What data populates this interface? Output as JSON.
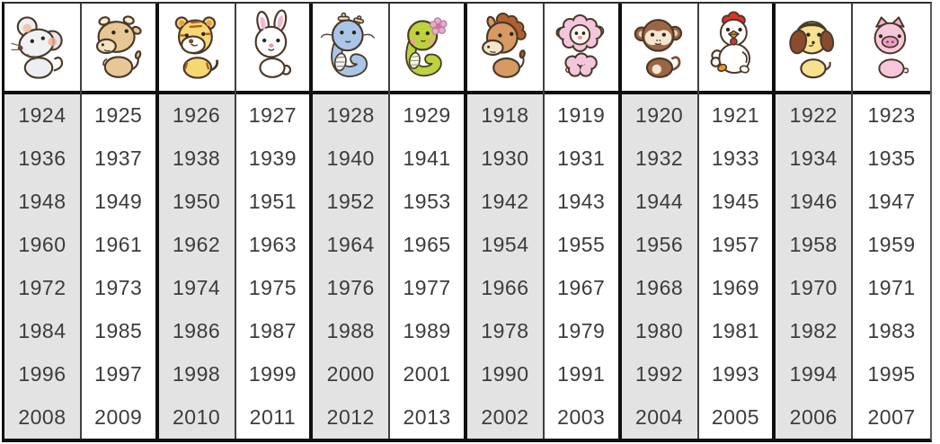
{
  "style": {
    "page_bg": "#ffffff",
    "header_bg": "#ffffff",
    "plain_column_bg": "#ffffff",
    "shaded_column_bg": "#e3e3e4",
    "thick_border_color": "#101010",
    "thin_border_color": "#3f3f3f",
    "year_text_color": "#3c3c3c"
  },
  "columns": [
    {
      "id": "rat",
      "icon": "rat-icon",
      "shaded": true,
      "years": [
        "1924",
        "1936",
        "1948",
        "1960",
        "1972",
        "1984",
        "1996",
        "2008"
      ]
    },
    {
      "id": "ox",
      "icon": "ox-icon",
      "shaded": false,
      "years": [
        "1925",
        "1937",
        "1949",
        "1961",
        "1973",
        "1985",
        "1997",
        "2009"
      ]
    },
    {
      "id": "tiger",
      "icon": "tiger-icon",
      "shaded": true,
      "years": [
        "1926",
        "1938",
        "1950",
        "1962",
        "1974",
        "1986",
        "1998",
        "2010"
      ]
    },
    {
      "id": "rabbit",
      "icon": "rabbit-icon",
      "shaded": false,
      "years": [
        "1927",
        "1939",
        "1951",
        "1963",
        "1975",
        "1987",
        "1999",
        "2011"
      ]
    },
    {
      "id": "dragon",
      "icon": "dragon-icon",
      "shaded": true,
      "years": [
        "1928",
        "1940",
        "1952",
        "1964",
        "1976",
        "1988",
        "2000",
        "2012"
      ]
    },
    {
      "id": "snake",
      "icon": "snake-icon",
      "shaded": false,
      "years": [
        "1929",
        "1941",
        "1953",
        "1965",
        "1977",
        "1989",
        "2001",
        "2013"
      ]
    },
    {
      "id": "horse",
      "icon": "horse-icon",
      "shaded": true,
      "years": [
        "1918",
        "1930",
        "1942",
        "1954",
        "1966",
        "1978",
        "1990",
        "2002"
      ]
    },
    {
      "id": "goat",
      "icon": "goat-icon",
      "shaded": false,
      "years": [
        "1919",
        "1931",
        "1943",
        "1955",
        "1967",
        "1979",
        "1991",
        "2003"
      ]
    },
    {
      "id": "monkey",
      "icon": "monkey-icon",
      "shaded": true,
      "years": [
        "1920",
        "1932",
        "1944",
        "1956",
        "1968",
        "1980",
        "1992",
        "2004"
      ]
    },
    {
      "id": "rooster",
      "icon": "rooster-icon",
      "shaded": false,
      "years": [
        "1921",
        "1933",
        "1945",
        "1957",
        "1969",
        "1981",
        "1993",
        "2005"
      ]
    },
    {
      "id": "dog",
      "icon": "dog-icon",
      "shaded": true,
      "years": [
        "1922",
        "1934",
        "1946",
        "1958",
        "1970",
        "1982",
        "1994",
        "2006"
      ]
    },
    {
      "id": "pig",
      "icon": "pig-icon",
      "shaded": false,
      "years": [
        "1923",
        "1935",
        "1947",
        "1959",
        "1971",
        "1983",
        "1995",
        "2007"
      ]
    }
  ],
  "chart_data": {
    "type": "table",
    "columns": [
      "Rat",
      "Ox",
      "Tiger",
      "Rabbit",
      "Dragon",
      "Snake",
      "Horse",
      "Goat",
      "Monkey",
      "Rooster",
      "Dog",
      "Pig"
    ],
    "rows": [
      [
        1924,
        1925,
        1926,
        1927,
        1928,
        1929,
        1918,
        1919,
        1920,
        1921,
        1922,
        1923
      ],
      [
        1936,
        1937,
        1938,
        1939,
        1940,
        1941,
        1930,
        1931,
        1932,
        1933,
        1934,
        1935
      ],
      [
        1948,
        1949,
        1950,
        1951,
        1952,
        1953,
        1942,
        1943,
        1944,
        1945,
        1946,
        1947
      ],
      [
        1960,
        1961,
        1962,
        1963,
        1964,
        1965,
        1954,
        1955,
        1956,
        1957,
        1958,
        1959
      ],
      [
        1972,
        1973,
        1974,
        1975,
        1976,
        1977,
        1966,
        1967,
        1968,
        1969,
        1970,
        1971
      ],
      [
        1984,
        1985,
        1986,
        1987,
        1988,
        1989,
        1978,
        1979,
        1980,
        1981,
        1982,
        1983
      ],
      [
        1996,
        1997,
        1998,
        1999,
        2000,
        2001,
        1990,
        1991,
        1992,
        1993,
        1994,
        1995
      ],
      [
        2008,
        2009,
        2010,
        2011,
        2012,
        2013,
        2002,
        2003,
        2004,
        2005,
        2006,
        2007
      ]
    ],
    "layout": {
      "header_row": "animal-icons",
      "shaded_column_indexes": [
        0,
        2,
        4,
        6,
        8,
        10
      ],
      "thick_separators_after_column_indexes": [
        1,
        3,
        5,
        7,
        9
      ],
      "grid": true
    }
  }
}
